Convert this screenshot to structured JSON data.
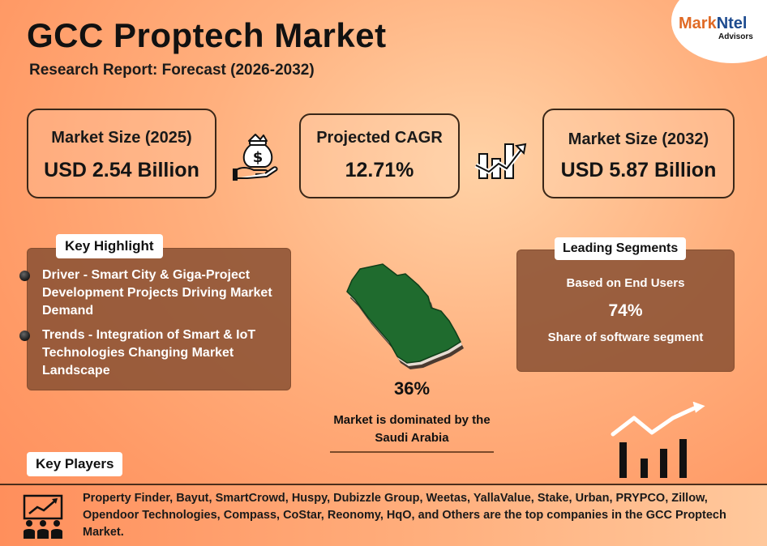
{
  "header": {
    "title": "GCC Proptech Market",
    "subtitle": "Research Report: Forecast (2026-2032)"
  },
  "logo": {
    "name_part1": "Mark",
    "name_part2": "Ntel",
    "sub": "Advisors"
  },
  "stats": {
    "market_size_2025": {
      "label": "Market Size (2025)",
      "value": "USD 2.54 Billion"
    },
    "cagr": {
      "label": "Projected CAGR",
      "value": "12.71%"
    },
    "market_size_2032": {
      "label": "Market Size (2032)",
      "value": "USD 5.87 Billion"
    }
  },
  "key_highlight": {
    "tag": "Key Highlight",
    "items": [
      "Driver - Smart City & Giga-Project Development Projects Driving Market Demand",
      "Trends - Integration of Smart & IoT Technologies Changing Market Landscape"
    ]
  },
  "map": {
    "percent": "36%",
    "caption": "Market is dominated by the Saudi Arabia"
  },
  "leading_segments": {
    "tag": "Leading Segments",
    "basis": "Based on End Users",
    "percent": "74%",
    "description": "Share of software segment"
  },
  "key_players": {
    "tag": "Key Players",
    "text": "Property Finder, Bayut, SmartCrowd, Huspy, Dubizzle Group, Weetas, YallaValue, Stake, Urban, PRYPCO, Zillow, Opendoor Technologies, Compass, CoStar, Reonomy, HqO, and Others are the top companies in the GCC Proptech Market."
  },
  "icons": {
    "money": "money-bag-hand-icon",
    "growth": "growth-chart-icon",
    "trend": "trend-bars-icon",
    "players": "presentation-people-icon",
    "map": "saudi-arabia-map-icon"
  },
  "colors": {
    "panel": "#8c5234",
    "map_green": "#1f6b2e",
    "logo_orange": "#e06a25",
    "logo_blue": "#1d4b8f"
  }
}
